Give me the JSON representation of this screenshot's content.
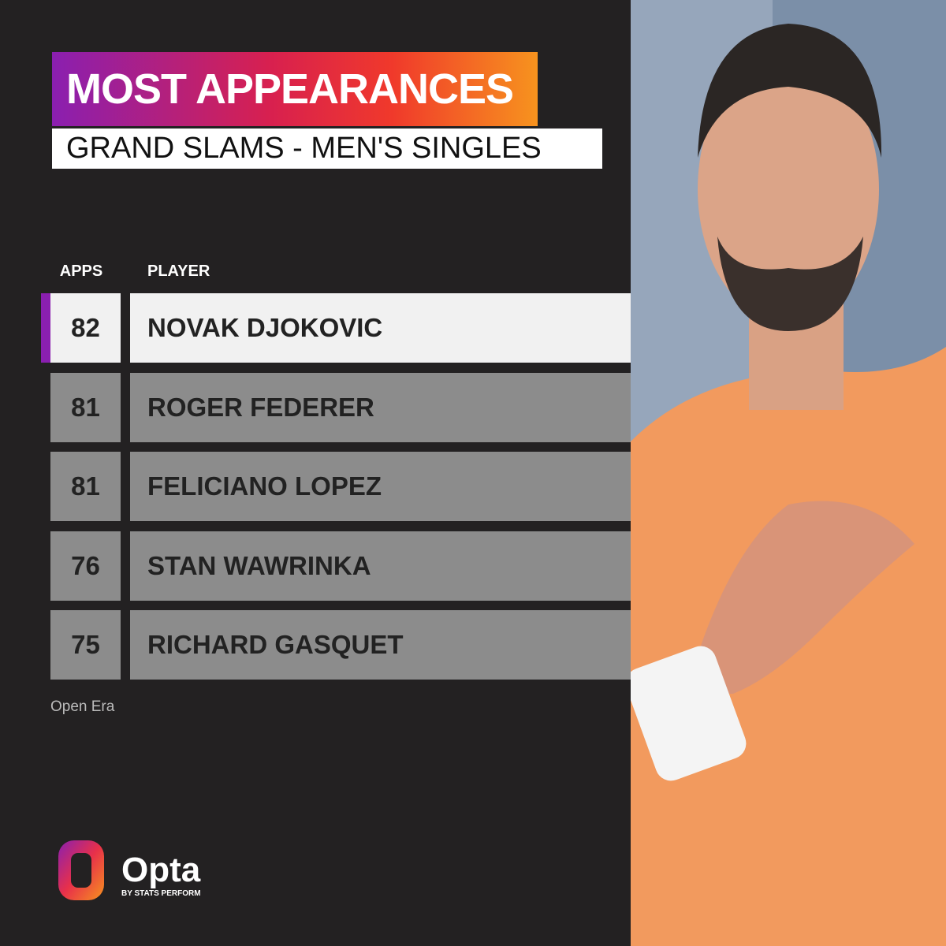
{
  "header": {
    "title": "MOST APPEARANCES",
    "subtitle": "GRAND SLAMS - MEN'S SINGLES"
  },
  "table": {
    "columns": [
      "APPS",
      "PLAYER"
    ],
    "rows": [
      [
        82,
        "NOVAK DJOKOVIC"
      ],
      [
        81,
        "ROGER FEDERER"
      ],
      [
        81,
        "FELICIANO LOPEZ"
      ],
      [
        76,
        "STAN WAWRINKA"
      ],
      [
        75,
        "RICHARD GASQUET"
      ]
    ]
  },
  "footnote": "Open Era",
  "logo": {
    "name": "Opta",
    "tagline": "BY STATS PERFORM"
  }
}
